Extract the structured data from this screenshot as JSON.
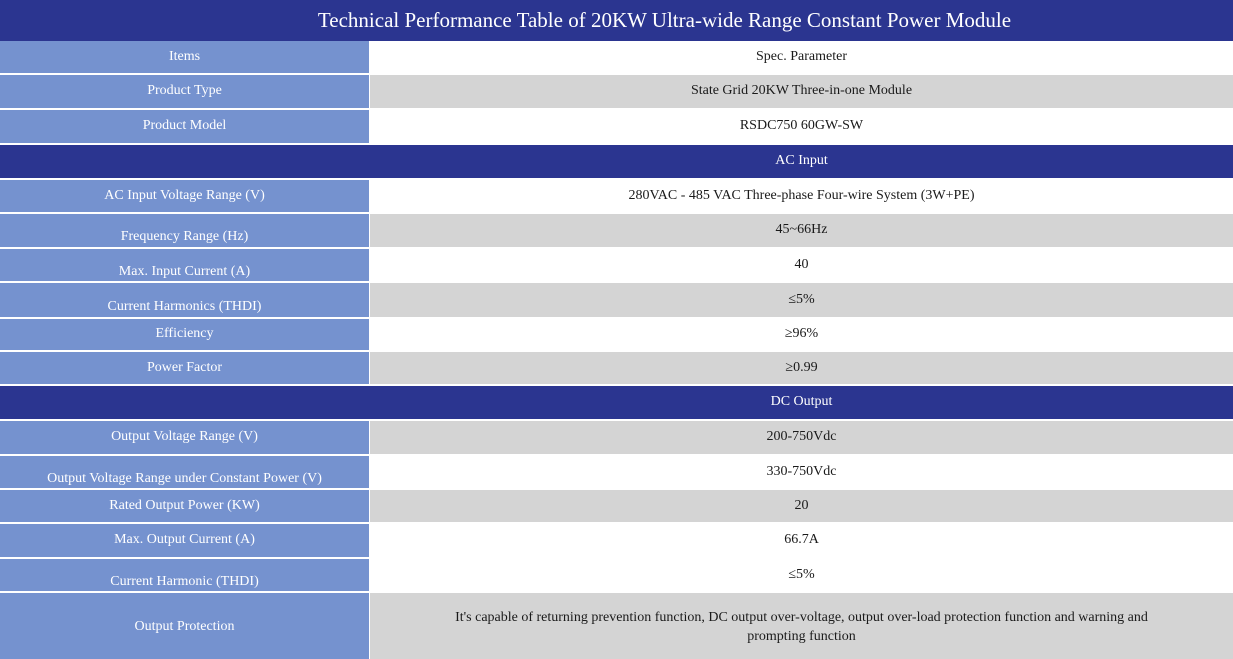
{
  "title": "Technical Performance Table of 20KW Ultra-wide Range Constant Power Module",
  "rows": [
    {
      "label": "Items",
      "value": "Spec. Parameter"
    },
    {
      "label": "Product Type",
      "value": "State Grid 20KW Three-in-one Module"
    },
    {
      "label": "Product Model",
      "value": "RSDC750 60GW-SW"
    },
    {
      "label": "",
      "value": "AC Input"
    },
    {
      "label": "AC Input Voltage Range (V)",
      "value": "280VAC - 485 VAC Three-phase Four-wire System (3W+PE)"
    },
    {
      "label": "Frequency Range (Hz)",
      "value": "45~66Hz"
    },
    {
      "label": "Max. Input Current (A)",
      "value": "40"
    },
    {
      "label": "Current Harmonics (THDI)",
      "value": "≤5%"
    },
    {
      "label": "Efficiency",
      "value": "≥96%"
    },
    {
      "label": "Power Factor",
      "value": "≥0.99"
    },
    {
      "label": "",
      "value": "DC Output"
    },
    {
      "label": "Output Voltage Range (V)",
      "value": "200-750Vdc"
    },
    {
      "label": "Output Voltage Range under Constant Power (V)",
      "value": "330-750Vdc"
    },
    {
      "label": "Rated Output Power (KW)",
      "value": "20"
    },
    {
      "label": "Max. Output Current (A)",
      "value": "66.7A"
    },
    {
      "label": "Current Harmonic (THDI)",
      "value": "≤5%"
    },
    {
      "label": "Output Protection",
      "value": "It's capable of returning prevention function, DC output over-voltage, output over-load protection function and warning and prompting function"
    }
  ]
}
